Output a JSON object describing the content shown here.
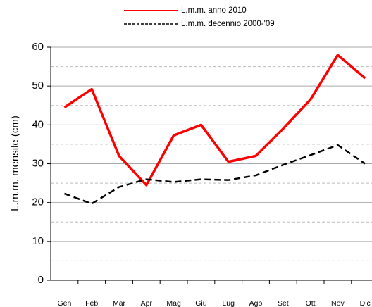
{
  "chart_data": {
    "type": "line",
    "y_label": "L.m.m. mensile (cm)",
    "categories": [
      "Gen",
      "Feb",
      "Mar",
      "Apr",
      "Mag",
      "Giu",
      "Lug",
      "Ago",
      "Set",
      "Ott",
      "Nov",
      "Dic"
    ],
    "series": [
      {
        "name": "L.m.m. anno 2010",
        "color": "#ff0000",
        "dash": "solid",
        "values": [
          44.5,
          49.2,
          32,
          24.5,
          37.3,
          40,
          30.5,
          32,
          39,
          46.5,
          58,
          52
        ]
      },
      {
        "name": "L.m.m. decennio 2000-'09",
        "color": "#000000",
        "dash": "dashed",
        "values": [
          22.3,
          19.7,
          24,
          26,
          25.3,
          26,
          25.8,
          27,
          29.7,
          32.2,
          34.8,
          30
        ]
      }
    ],
    "ylim": [
      0,
      60
    ],
    "yticks": [
      0,
      10,
      20,
      30,
      40,
      50,
      60
    ],
    "minor_grid": [
      5,
      15,
      25,
      35,
      45,
      55
    ],
    "grid": true
  }
}
